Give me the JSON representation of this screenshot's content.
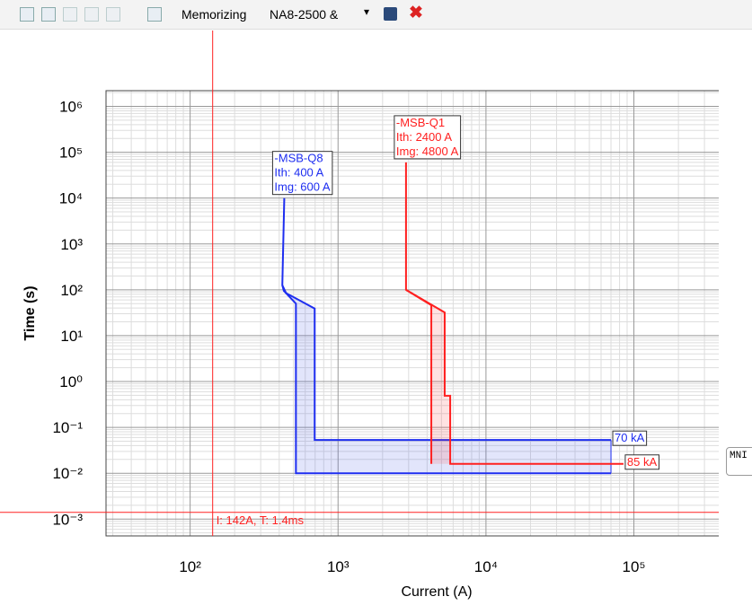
{
  "toolbar": {
    "label": "Memorizing",
    "dropdown": "NA8-2500 &"
  },
  "side_tooltip": "MNI",
  "chart_data": {
    "type": "line",
    "x_label": "Current (A)",
    "y_label": "Time (s)",
    "log_x": true,
    "log_y": true,
    "grid": true,
    "xlim": [
      27,
      380000
    ],
    "ylim": [
      0.00043,
      2200000
    ],
    "xticks": [
      {
        "value": 100,
        "label": "10²"
      },
      {
        "value": 1000,
        "label": "10³"
      },
      {
        "value": 10000,
        "label": "10⁴"
      },
      {
        "value": 100000,
        "label": "10⁵"
      }
    ],
    "yticks": [
      {
        "value": 0.001,
        "label": "10⁻³"
      },
      {
        "value": 0.01,
        "label": "10⁻²"
      },
      {
        "value": 0.1,
        "label": "10⁻¹"
      },
      {
        "value": 1,
        "label": "10⁰"
      },
      {
        "value": 10,
        "label": "10¹"
      },
      {
        "value": 100,
        "label": "10²"
      },
      {
        "value": 1000,
        "label": "10³"
      },
      {
        "value": 10000,
        "label": "10⁴"
      },
      {
        "value": 100000,
        "label": "10⁵"
      },
      {
        "value": 1000000,
        "label": "10⁶"
      }
    ],
    "series": [
      {
        "name": "-MSB-Q8",
        "color": "#1e2ef0",
        "fill": "rgba(60,80,230,0.15)",
        "labels": [
          "Ith: 400 A",
          "Img: 600 A"
        ],
        "end_label": "70 kA",
        "x": [
          433,
          420,
          445,
          695,
          695,
          70000
        ],
        "values": [
          10000,
          126,
          85,
          39,
          0.053,
          0.053
        ],
        "x_low": [
          420,
          430,
          519,
          519,
          70000
        ],
        "values_low": [
          126,
          95,
          50,
          0.01,
          0.01
        ]
      },
      {
        "name": "-MSB-Q1",
        "color": "#ff2020",
        "fill": "rgba(255,60,60,0.15)",
        "labels": [
          "Ith: 2400 A",
          "Img: 4800 A"
        ],
        "end_label": "85 kA",
        "x": [
          2880,
          2880,
          5260,
          5260,
          5730,
          5730,
          85000
        ],
        "values": [
          60000,
          100,
          32,
          0.49,
          0.49,
          0.016,
          0.016
        ],
        "x_low": [
          2880,
          4270,
          4270
        ],
        "values_low": [
          100,
          46,
          0.016
        ]
      }
    ],
    "cursor": {
      "x": 142,
      "y": 0.0014,
      "label": "I: 142A, T: 1.4ms",
      "color": "#ff2020"
    }
  }
}
